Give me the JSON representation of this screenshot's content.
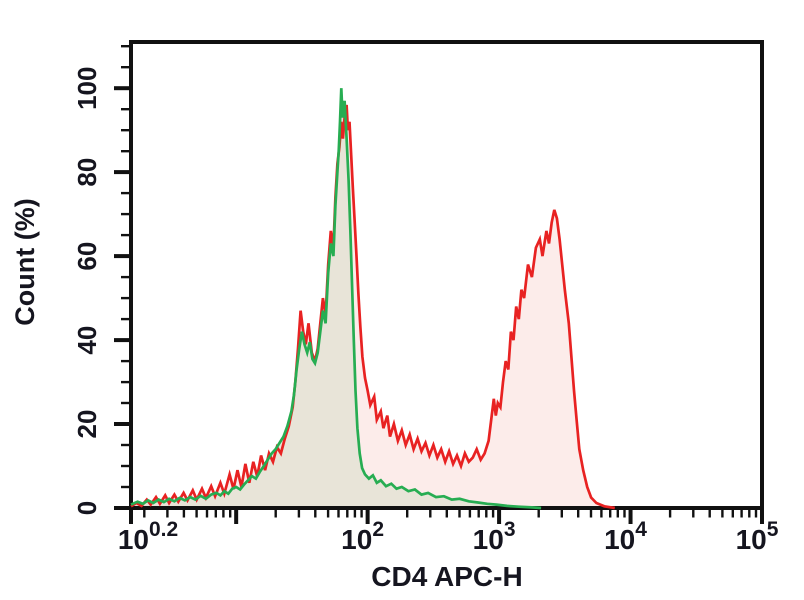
{
  "chart_data": {
    "type": "area",
    "subtype": "flow-cytometry-histogram-overlay",
    "title": "",
    "xlabel": "CD4 APC-H",
    "ylabel": "Count (%)",
    "x_scale": "log10",
    "xlim_decades": [
      0.2,
      5
    ],
    "ylim": [
      0,
      111
    ],
    "grid": false,
    "legend": false,
    "axis_color": "#111111",
    "label_color": "#15151f",
    "x_major_ticks": [
      {
        "decade": 0.2,
        "base": "10",
        "exponent": "0.2"
      },
      {
        "decade": 1,
        "base": "",
        "exponent": ""
      },
      {
        "decade": 2,
        "base": "10",
        "exponent": "2"
      },
      {
        "decade": 3,
        "base": "10",
        "exponent": "3"
      },
      {
        "decade": 4,
        "base": "10",
        "exponent": "4"
      },
      {
        "decade": 5,
        "base": "10",
        "exponent": "5"
      }
    ],
    "y_major_ticks": [
      {
        "value": 0,
        "label": "0"
      },
      {
        "value": 20,
        "label": "20"
      },
      {
        "value": 40,
        "label": "40"
      },
      {
        "value": 60,
        "label": "60"
      },
      {
        "value": 80,
        "label": "80"
      },
      {
        "value": 100,
        "label": "100"
      }
    ],
    "y_minor_step": 5,
    "series": [
      {
        "id": "red-stained-sample",
        "line_color": "#e82222",
        "fill_color": "#fcecea",
        "peaks": [
          {
            "x_decade": 1.84,
            "count_pct": 96
          },
          {
            "x_decade": 3.42,
            "count_pct": 71
          }
        ],
        "points": [
          [
            0.2,
            0.4
          ],
          [
            0.24,
            1.2
          ],
          [
            0.28,
            0.5
          ],
          [
            0.32,
            2.0
          ],
          [
            0.35,
            0.8
          ],
          [
            0.39,
            2.6
          ],
          [
            0.42,
            1.0
          ],
          [
            0.46,
            3.0
          ],
          [
            0.49,
            1.2
          ],
          [
            0.53,
            3.2
          ],
          [
            0.56,
            1.5
          ],
          [
            0.6,
            3.6
          ],
          [
            0.63,
            1.8
          ],
          [
            0.67,
            4.2
          ],
          [
            0.7,
            2.0
          ],
          [
            0.74,
            4.6
          ],
          [
            0.77,
            2.4
          ],
          [
            0.81,
            5.2
          ],
          [
            0.84,
            2.8
          ],
          [
            0.88,
            6.0
          ],
          [
            0.91,
            3.4
          ],
          [
            0.95,
            8.0
          ],
          [
            0.98,
            4.5
          ],
          [
            1.01,
            9.0
          ],
          [
            1.04,
            5.0
          ],
          [
            1.07,
            10.5
          ],
          [
            1.1,
            6.0
          ],
          [
            1.13,
            11.0
          ],
          [
            1.16,
            7.5
          ],
          [
            1.19,
            12.5
          ],
          [
            1.22,
            9.0
          ],
          [
            1.25,
            13.0
          ],
          [
            1.28,
            11.0
          ],
          [
            1.31,
            14.5
          ],
          [
            1.34,
            13.0
          ],
          [
            1.37,
            16.5
          ],
          [
            1.4,
            19.5
          ],
          [
            1.43,
            24.0
          ],
          [
            1.45,
            30.0
          ],
          [
            1.47,
            38.0
          ],
          [
            1.49,
            47.0
          ],
          [
            1.51,
            42.0
          ],
          [
            1.53,
            39.0
          ],
          [
            1.55,
            44.0
          ],
          [
            1.575,
            37.0
          ],
          [
            1.6,
            35.0
          ],
          [
            1.62,
            38.0
          ],
          [
            1.64,
            44.0
          ],
          [
            1.66,
            50.0
          ],
          [
            1.68,
            46.0
          ],
          [
            1.7,
            58.0
          ],
          [
            1.72,
            66.0
          ],
          [
            1.74,
            62.0
          ],
          [
            1.755,
            74.0
          ],
          [
            1.77,
            82.0
          ],
          [
            1.785,
            86.0
          ],
          [
            1.8,
            92.0
          ],
          [
            1.812,
            88.0
          ],
          [
            1.825,
            93.0
          ],
          [
            1.84,
            96.0
          ],
          [
            1.85,
            90.0
          ],
          [
            1.862,
            92.0
          ],
          [
            1.875,
            84.0
          ],
          [
            1.888,
            76.0
          ],
          [
            1.9,
            69.0
          ],
          [
            1.915,
            60.0
          ],
          [
            1.93,
            51.0
          ],
          [
            1.945,
            43.0
          ],
          [
            1.96,
            36.0
          ],
          [
            1.98,
            31.0
          ],
          [
            2.0,
            28.0
          ],
          [
            2.02,
            24.5
          ],
          [
            2.05,
            26.5
          ],
          [
            2.07,
            21.0
          ],
          [
            2.1,
            23.0
          ],
          [
            2.12,
            19.0
          ],
          [
            2.15,
            22.0
          ],
          [
            2.17,
            17.0
          ],
          [
            2.2,
            20.0
          ],
          [
            2.23,
            16.0
          ],
          [
            2.26,
            18.5
          ],
          [
            2.29,
            15.0
          ],
          [
            2.32,
            17.5
          ],
          [
            2.35,
            14.0
          ],
          [
            2.38,
            16.5
          ],
          [
            2.41,
            13.5
          ],
          [
            2.44,
            15.5
          ],
          [
            2.47,
            12.5
          ],
          [
            2.5,
            15.0
          ],
          [
            2.53,
            12.0
          ],
          [
            2.56,
            14.0
          ],
          [
            2.59,
            11.0
          ],
          [
            2.62,
            13.5
          ],
          [
            2.65,
            10.5
          ],
          [
            2.68,
            12.5
          ],
          [
            2.71,
            10.0
          ],
          [
            2.74,
            13.0
          ],
          [
            2.77,
            11.0
          ],
          [
            2.8,
            12.0
          ],
          [
            2.83,
            14.0
          ],
          [
            2.86,
            11.5
          ],
          [
            2.89,
            13.0
          ],
          [
            2.92,
            16.0
          ],
          [
            2.94,
            21.0
          ],
          [
            2.96,
            26.0
          ],
          [
            2.975,
            22.0
          ],
          [
            2.99,
            25.0
          ],
          [
            3.01,
            24.0
          ],
          [
            3.03,
            30.0
          ],
          [
            3.05,
            35.0
          ],
          [
            3.07,
            33.0
          ],
          [
            3.09,
            42.0
          ],
          [
            3.11,
            40.0
          ],
          [
            3.13,
            48.0
          ],
          [
            3.15,
            45.0
          ],
          [
            3.17,
            52.0
          ],
          [
            3.19,
            50.0
          ],
          [
            3.22,
            58.0
          ],
          [
            3.25,
            55.0
          ],
          [
            3.28,
            62.0
          ],
          [
            3.31,
            64.0
          ],
          [
            3.33,
            60.0
          ],
          [
            3.36,
            66.0
          ],
          [
            3.38,
            63.0
          ],
          [
            3.4,
            68.0
          ],
          [
            3.42,
            71.0
          ],
          [
            3.44,
            69.0
          ],
          [
            3.46,
            64.0
          ],
          [
            3.48,
            58.0
          ],
          [
            3.5,
            52.0
          ],
          [
            3.53,
            44.0
          ],
          [
            3.55,
            36.0
          ],
          [
            3.57,
            28.0
          ],
          [
            3.59,
            21.0
          ],
          [
            3.61,
            14.0
          ],
          [
            3.64,
            9.0
          ],
          [
            3.67,
            5.0
          ],
          [
            3.7,
            2.5
          ],
          [
            3.74,
            1.2
          ],
          [
            3.8,
            0.4
          ],
          [
            3.88,
            0.0
          ]
        ]
      },
      {
        "id": "green-control",
        "line_color": "#27ad52",
        "fill_color": "#e8e4d8",
        "peaks": [
          {
            "x_decade": 1.8,
            "count_pct": 100
          }
        ],
        "points": [
          [
            0.2,
            0.8
          ],
          [
            0.25,
            1.5
          ],
          [
            0.29,
            1.0
          ],
          [
            0.33,
            1.8
          ],
          [
            0.37,
            1.2
          ],
          [
            0.41,
            2.0
          ],
          [
            0.45,
            1.4
          ],
          [
            0.49,
            2.2
          ],
          [
            0.53,
            1.6
          ],
          [
            0.57,
            2.4
          ],
          [
            0.61,
            1.8
          ],
          [
            0.65,
            2.6
          ],
          [
            0.69,
            2.0
          ],
          [
            0.73,
            2.9
          ],
          [
            0.77,
            2.2
          ],
          [
            0.81,
            3.2
          ],
          [
            0.85,
            3.6
          ],
          [
            0.88,
            3.0
          ],
          [
            0.91,
            4.0
          ],
          [
            0.94,
            3.4
          ],
          [
            0.97,
            4.6
          ],
          [
            1.0,
            5.0
          ],
          [
            1.03,
            4.4
          ],
          [
            1.06,
            5.6
          ],
          [
            1.09,
            6.6
          ],
          [
            1.12,
            7.6
          ],
          [
            1.15,
            7.0
          ],
          [
            1.18,
            8.6
          ],
          [
            1.21,
            10.0
          ],
          [
            1.24,
            11.5
          ],
          [
            1.27,
            13.0
          ],
          [
            1.3,
            14.0
          ],
          [
            1.33,
            15.5
          ],
          [
            1.36,
            17.0
          ],
          [
            1.39,
            19.5
          ],
          [
            1.42,
            23.0
          ],
          [
            1.44,
            27.0
          ],
          [
            1.46,
            33.0
          ],
          [
            1.48,
            38.0
          ],
          [
            1.5,
            42.0
          ],
          [
            1.52,
            39.0
          ],
          [
            1.54,
            37.0
          ],
          [
            1.56,
            39.5
          ],
          [
            1.58,
            35.5
          ],
          [
            1.6,
            34.5
          ],
          [
            1.62,
            37.0
          ],
          [
            1.64,
            42.0
          ],
          [
            1.66,
            47.0
          ],
          [
            1.68,
            44.0
          ],
          [
            1.7,
            56.0
          ],
          [
            1.72,
            63.0
          ],
          [
            1.74,
            60.0
          ],
          [
            1.755,
            72.0
          ],
          [
            1.77,
            80.0
          ],
          [
            1.78,
            85.0
          ],
          [
            1.79,
            92.0
          ],
          [
            1.8,
            100.0
          ],
          [
            1.81,
            93.0
          ],
          [
            1.825,
            97.0
          ],
          [
            1.84,
            88.0
          ],
          [
            1.855,
            78.0
          ],
          [
            1.87,
            65.0
          ],
          [
            1.883,
            52.0
          ],
          [
            1.895,
            40.0
          ],
          [
            1.908,
            28.0
          ],
          [
            1.922,
            19.0
          ],
          [
            1.94,
            13.0
          ],
          [
            1.958,
            9.5
          ],
          [
            1.98,
            8.0
          ],
          [
            2.01,
            7.0
          ],
          [
            2.04,
            7.8
          ],
          [
            2.07,
            6.0
          ],
          [
            2.1,
            6.6
          ],
          [
            2.14,
            5.2
          ],
          [
            2.18,
            5.8
          ],
          [
            2.22,
            4.6
          ],
          [
            2.26,
            5.0
          ],
          [
            2.31,
            4.0
          ],
          [
            2.36,
            4.4
          ],
          [
            2.41,
            3.2
          ],
          [
            2.46,
            3.6
          ],
          [
            2.52,
            2.6
          ],
          [
            2.58,
            2.8
          ],
          [
            2.64,
            2.0
          ],
          [
            2.7,
            2.2
          ],
          [
            2.77,
            1.6
          ],
          [
            2.84,
            1.3
          ],
          [
            2.91,
            1.0
          ],
          [
            2.98,
            0.8
          ],
          [
            3.06,
            0.5
          ],
          [
            3.15,
            0.3
          ],
          [
            3.25,
            0.15
          ],
          [
            3.32,
            0.0
          ]
        ]
      }
    ]
  }
}
